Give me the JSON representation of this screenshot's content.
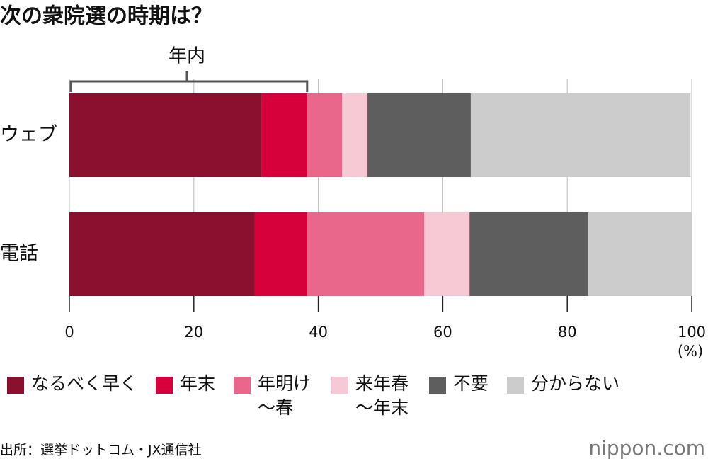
{
  "chart_data": {
    "type": "stacked_barh",
    "title": "次の衆院選の時期は？",
    "annotation": "年内",
    "categories": [
      "ウェブ",
      "電話"
    ],
    "series": [
      {
        "name": "なるべく早く",
        "color": "#8b1030",
        "values": [
          30.9,
          29.8
        ]
      },
      {
        "name": "年末",
        "color": "#d6003a",
        "values": [
          7.3,
          8.4
        ]
      },
      {
        "name": "年明け〜春",
        "color": "#e8678a",
        "values": [
          5.6,
          18.8
        ]
      },
      {
        "name": "来年春〜年末",
        "color": "#f6c9d4",
        "values": [
          4.1,
          7.3
        ]
      },
      {
        "name": "不要",
        "color": "#5e5e5e",
        "values": [
          16.6,
          19.1
        ]
      },
      {
        "name": "分からない",
        "color": "#cccccc",
        "values": [
          35.3,
          16.6
        ]
      }
    ],
    "xlim": [
      0,
      100
    ],
    "xticks": [
      0,
      20,
      40,
      60,
      80,
      100
    ],
    "xlabel": "(%)",
    "grid": true,
    "source": "出所：選挙ドットコム・JX通信社",
    "logo": "nippon.com"
  }
}
